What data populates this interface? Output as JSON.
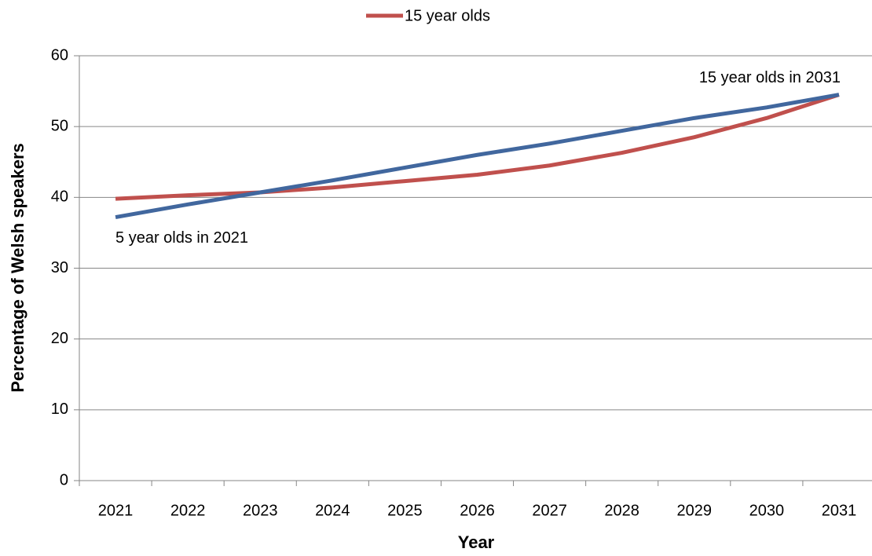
{
  "chart_data": {
    "type": "line",
    "x_label": "Year",
    "y_label": "Percentage of Welsh speakers",
    "categories": [
      "2021",
      "2022",
      "2023",
      "2024",
      "2025",
      "2026",
      "2027",
      "2028",
      "2029",
      "2030",
      "2031"
    ],
    "series": [
      {
        "name": "15 year olds",
        "color": "#c0504d",
        "values": [
          39.8,
          40.3,
          40.7,
          41.4,
          42.3,
          43.2,
          44.5,
          46.3,
          48.5,
          51.2,
          54.5
        ]
      },
      {
        "color": "#41679e",
        "values": [
          37.2,
          39.0,
          40.7,
          42.4,
          44.2,
          46.0,
          47.6,
          49.4,
          51.2,
          52.7,
          54.5
        ]
      }
    ],
    "annotations": [
      "5 year olds in 2021",
      "15 year olds in 2031"
    ],
    "ylim": [
      0,
      60
    ],
    "yticks": [
      0,
      10,
      20,
      30,
      40,
      50,
      60
    ],
    "grid": true,
    "legend": "top"
  }
}
